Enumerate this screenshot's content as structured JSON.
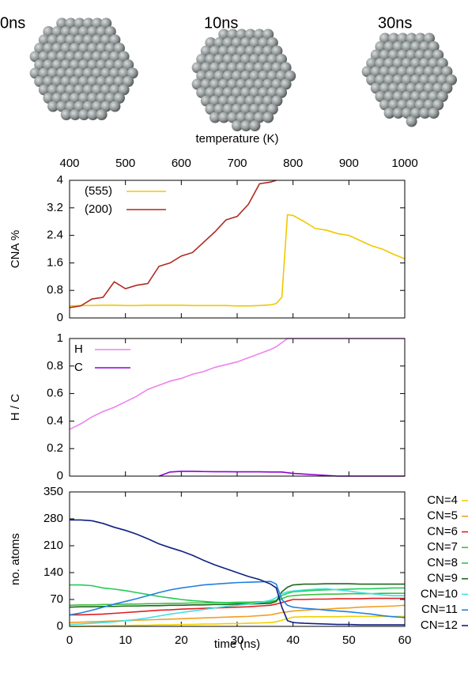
{
  "images": [
    {
      "label": "0ns"
    },
    {
      "label": "10ns"
    },
    {
      "label": "30ns"
    }
  ],
  "chart_data": [
    {
      "type": "line",
      "ylabel": "CNA %",
      "x2label": "temperature (K)",
      "x2lim": [
        400,
        1000
      ],
      "x2ticks": [
        400,
        500,
        600,
        700,
        800,
        900,
        1000
      ],
      "xlim": [
        0,
        60
      ],
      "ylim": [
        0,
        4
      ],
      "yticks": [
        0,
        0.8,
        1.6,
        2.4,
        3.2,
        4
      ],
      "legend": "upper left",
      "x": [
        0,
        2,
        4,
        6,
        8,
        10,
        12,
        14,
        16,
        18,
        20,
        22,
        24,
        26,
        28,
        30,
        32,
        34,
        36,
        37,
        38,
        39,
        40,
        42,
        44,
        46,
        48,
        50,
        52,
        54,
        56,
        58,
        60
      ],
      "series": [
        {
          "name": "(555)",
          "color": "#f0c800",
          "values": [
            0.35,
            0.36,
            0.36,
            0.37,
            0.37,
            0.36,
            0.36,
            0.37,
            0.37,
            0.37,
            0.37,
            0.36,
            0.36,
            0.36,
            0.36,
            0.35,
            0.35,
            0.36,
            0.38,
            0.42,
            0.6,
            3.0,
            2.98,
            2.8,
            2.6,
            2.55,
            2.45,
            2.4,
            2.25,
            2.1,
            2.0,
            1.85,
            1.72
          ]
        },
        {
          "name": "(200)",
          "color": "#b02a20",
          "values": [
            0.3,
            0.35,
            0.55,
            0.6,
            1.05,
            0.85,
            0.95,
            1.0,
            1.5,
            1.6,
            1.8,
            1.9,
            2.2,
            2.5,
            2.85,
            2.95,
            3.3,
            3.9,
            3.95,
            4.0,
            null,
            null,
            null,
            null,
            null,
            null,
            null,
            null,
            null,
            null,
            null,
            null,
            null
          ]
        }
      ]
    },
    {
      "type": "line",
      "ylabel": "H / C",
      "xlim": [
        0,
        60
      ],
      "ylim": [
        0,
        1
      ],
      "yticks": [
        0,
        0.2,
        0.4,
        0.6,
        0.8,
        1
      ],
      "legend": "upper left",
      "x": [
        0,
        2,
        4,
        6,
        8,
        10,
        12,
        14,
        16,
        18,
        20,
        22,
        24,
        26,
        28,
        30,
        32,
        34,
        36,
        37,
        38,
        39,
        40,
        42,
        44,
        46,
        48,
        50,
        52,
        54,
        56,
        58,
        60
      ],
      "series": [
        {
          "name": "H",
          "color": "#ee82ee",
          "values": [
            0.34,
            0.38,
            0.43,
            0.47,
            0.5,
            0.54,
            0.58,
            0.63,
            0.66,
            0.69,
            0.71,
            0.74,
            0.76,
            0.79,
            0.81,
            0.83,
            0.86,
            0.89,
            0.92,
            0.94,
            0.97,
            1.0,
            1.0,
            1.0,
            1.0,
            1.0,
            1.0,
            1.0,
            1.0,
            1.0,
            1.0,
            1.0,
            1.0
          ]
        },
        {
          "name": "C",
          "color": "#9400d3",
          "values": [
            null,
            null,
            null,
            null,
            null,
            null,
            null,
            null,
            0,
            0.03,
            0.035,
            0.035,
            0.033,
            0.032,
            0.032,
            0.031,
            0.031,
            0.031,
            0.03,
            0.03,
            0.03,
            0.025,
            0.02,
            0.015,
            0.01,
            0.005,
            0,
            0,
            0,
            0,
            0,
            0,
            0
          ]
        }
      ]
    },
    {
      "type": "line",
      "ylabel": "no. atoms",
      "xlabel": "time (ns)",
      "xlim": [
        0,
        60
      ],
      "xticks": [
        0,
        10,
        20,
        30,
        40,
        50,
        60
      ],
      "ylim": [
        0,
        350
      ],
      "yticks": [
        0,
        70,
        140,
        210,
        280,
        350
      ],
      "legend": "right",
      "x": [
        0,
        2,
        4,
        6,
        8,
        10,
        12,
        14,
        16,
        18,
        20,
        22,
        24,
        26,
        28,
        30,
        32,
        34,
        36,
        37,
        38,
        39,
        40,
        42,
        44,
        46,
        48,
        50,
        52,
        54,
        56,
        58,
        60
      ],
      "series": [
        {
          "name": "CN=4",
          "color": "#f0d000",
          "values": [
            0,
            0,
            1,
            1,
            2,
            2,
            3,
            3,
            4,
            4,
            5,
            5,
            6,
            6,
            7,
            7,
            8,
            9,
            10,
            12,
            16,
            20,
            24,
            25,
            25,
            25,
            25,
            26,
            26,
            26,
            26,
            26,
            26
          ]
        },
        {
          "name": "CN=5",
          "color": "#f0a020",
          "values": [
            10,
            11,
            12,
            13,
            14,
            15,
            16,
            17,
            18,
            19,
            20,
            21,
            22,
            23,
            24,
            25,
            26,
            28,
            30,
            33,
            36,
            38,
            40,
            42,
            44,
            45,
            47,
            48,
            50,
            51,
            52,
            53,
            55
          ]
        },
        {
          "name": "CN=6",
          "color": "#e02020",
          "values": [
            30,
            30,
            31,
            32,
            34,
            36,
            38,
            40,
            42,
            43,
            45,
            46,
            47,
            48,
            49,
            50,
            51,
            53,
            55,
            58,
            62,
            66,
            70,
            70,
            71,
            71,
            72,
            72,
            72,
            73,
            73,
            73,
            73
          ]
        },
        {
          "name": "CN=7",
          "color": "#40c040",
          "values": [
            55,
            56,
            56,
            57,
            57,
            58,
            58,
            59,
            59,
            60,
            60,
            61,
            61,
            62,
            62,
            63,
            63,
            64,
            65,
            68,
            72,
            78,
            80,
            82,
            83,
            84,
            84,
            85,
            85,
            85,
            86,
            86,
            86
          ]
        },
        {
          "name": "CN=8",
          "color": "#22cc55",
          "values": [
            108,
            108,
            106,
            100,
            97,
            93,
            88,
            83,
            78,
            74,
            70,
            67,
            65,
            63,
            62,
            61,
            60,
            60,
            62,
            68,
            80,
            86,
            90,
            92,
            94,
            95,
            96,
            97,
            98,
            98,
            99,
            100,
            100
          ]
        },
        {
          "name": "CN=9",
          "color": "#1e6a1e",
          "values": [
            50,
            51,
            51,
            52,
            52,
            53,
            53,
            54,
            54,
            55,
            55,
            56,
            56,
            57,
            57,
            58,
            58,
            59,
            60,
            65,
            90,
            102,
            108,
            110,
            110,
            111,
            111,
            111,
            110,
            110,
            110,
            110,
            110
          ]
        },
        {
          "name": "CN=10",
          "color": "#40e0e0",
          "values": [
            5,
            6,
            8,
            10,
            12,
            15,
            18,
            22,
            27,
            32,
            36,
            40,
            44,
            48,
            52,
            55,
            58,
            62,
            68,
            75,
            85,
            90,
            92,
            95,
            97,
            98,
            95,
            92,
            88,
            85,
            82,
            80,
            80
          ]
        },
        {
          "name": "CN=11",
          "color": "#2080e0",
          "values": [
            30,
            35,
            42,
            50,
            58,
            65,
            72,
            80,
            88,
            95,
            100,
            104,
            108,
            110,
            112,
            114,
            115,
            116,
            117,
            110,
            70,
            55,
            50,
            47,
            45,
            42,
            40,
            38,
            35,
            32,
            28,
            25,
            23
          ]
        },
        {
          "name": "CN=12",
          "color": "#102080",
          "values": [
            277,
            277,
            275,
            268,
            258,
            250,
            240,
            228,
            215,
            205,
            196,
            185,
            172,
            160,
            150,
            140,
            130,
            122,
            110,
            100,
            50,
            15,
            10,
            8,
            7,
            6,
            5,
            5,
            4,
            4,
            4,
            4,
            4
          ]
        }
      ]
    }
  ]
}
